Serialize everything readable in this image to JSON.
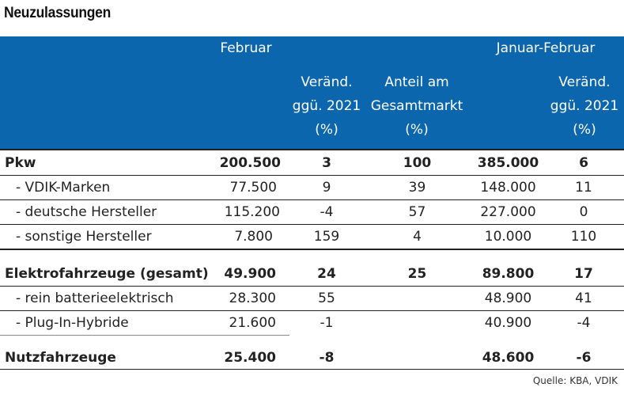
{
  "title": "Neuzulassungen",
  "header": {
    "februar": "Februar",
    "januar_februar": "Januar-Februar",
    "col_change_l1": "Veränd.",
    "col_change_l2": "ggü. 2021",
    "col_change_l3": "(%)",
    "col_share_l1": "Anteil am",
    "col_share_l2": "Gesamtmarkt",
    "col_share_l3": "(%)",
    "col_change2_l1": "Veränd.",
    "col_change2_l2": "ggü. 2021",
    "col_change2_l3": "(%)"
  },
  "rows": [
    {
      "label": "Pkw",
      "feb": "200.500",
      "chg": "3",
      "share": "100",
      "jf": "385.000",
      "jfchg": "6"
    },
    {
      "label": "- VDIK-Marken",
      "feb": "77.500",
      "chg": "9",
      "share": "39",
      "jf": "148.000",
      "jfchg": "11"
    },
    {
      "label": "- deutsche Hersteller",
      "feb": "115.200",
      "chg": "-4",
      "share": "57",
      "jf": "227.000",
      "jfchg": "0"
    },
    {
      "label": "- sonstige Hersteller",
      "feb": "7.800",
      "chg": "159",
      "share": "4",
      "jf": "10.000",
      "jfchg": "110"
    },
    {
      "label": "Elektrofahrzeuge (gesamt)",
      "feb": "49.900",
      "chg": "24",
      "share": "25",
      "jf": "89.800",
      "jfchg": "17"
    },
    {
      "label": "- rein batterieelektrisch",
      "feb": "28.300",
      "chg": "55",
      "share": "",
      "jf": "48.900",
      "jfchg": "41"
    },
    {
      "label": "- Plug-In-Hybride",
      "feb": "21.600",
      "chg": "-1",
      "share": "",
      "jf": "40.900",
      "jfchg": "-4"
    },
    {
      "label": "Nutzfahrzeuge",
      "feb": "25.400",
      "chg": "-8",
      "share": "",
      "jf": "48.600",
      "jfchg": "-6"
    }
  ],
  "source": "Quelle: KBA, VDIK"
}
